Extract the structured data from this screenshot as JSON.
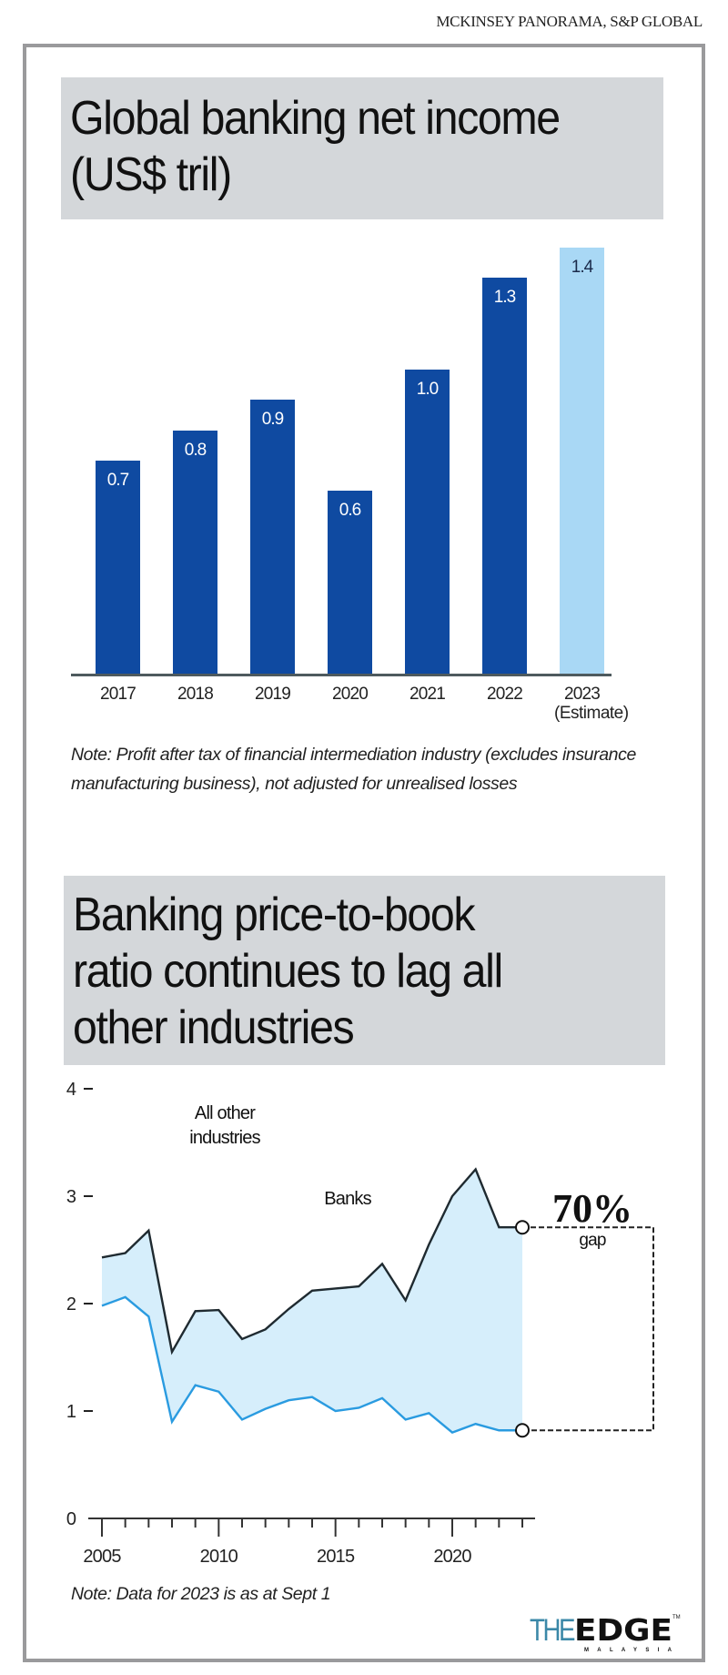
{
  "source": "MCKINSEY PANORAMA, S&P GLOBAL",
  "chart_data": [
    {
      "type": "bar",
      "title_lines": [
        "Global banking net income",
        "(US$ tril)"
      ],
      "categories": [
        "2017",
        "2018",
        "2019",
        "2020",
        "2021",
        "2022",
        "2023"
      ],
      "category_sublabels": {
        "2023": "(Estimate)"
      },
      "values": [
        0.7,
        0.8,
        0.9,
        0.6,
        1.0,
        1.3,
        1.4
      ],
      "value_labels": [
        "0.7",
        "0.8",
        "0.9",
        "0.6",
        "1.0",
        "1.3",
        "1.4"
      ],
      "colors": {
        "actual": "#0f4aa1",
        "estimate": "#a9d8f5"
      },
      "ylim": [
        0,
        1.4
      ],
      "grid": false,
      "note": "Note: Profit after tax of financial intermediation industry (excludes insurance manufacturing business), not adjusted for unrealised losses"
    },
    {
      "type": "line",
      "title_lines": [
        "Banking price-to-book",
        "ratio continues to lag all",
        "other industries"
      ],
      "x": [
        2005,
        2006,
        2007,
        2008,
        2009,
        2010,
        2011,
        2012,
        2013,
        2014,
        2015,
        2016,
        2017,
        2018,
        2019,
        2020,
        2021,
        2022,
        2023
      ],
      "series": [
        {
          "name": "All other industries",
          "name_lines": [
            "All other",
            "industries"
          ],
          "color": "#1f2a30",
          "values": [
            2.43,
            2.47,
            2.68,
            1.55,
            1.93,
            1.94,
            1.67,
            1.76,
            1.95,
            2.12,
            2.14,
            2.16,
            2.37,
            2.03,
            2.55,
            3.0,
            3.25,
            2.71,
            2.71
          ]
        },
        {
          "name": "Banks",
          "color": "#2a9be0",
          "values": [
            1.98,
            2.06,
            1.88,
            0.9,
            1.24,
            1.18,
            0.92,
            1.02,
            1.1,
            1.13,
            1.0,
            1.03,
            1.12,
            0.92,
            0.98,
            0.8,
            0.88,
            0.82,
            0.82
          ]
        }
      ],
      "fill_between_color": "#d6eefb",
      "yticks": [
        "0",
        "1",
        "2",
        "3",
        "4"
      ],
      "xtick_labels": [
        "2005",
        "2010",
        "2015",
        "2020"
      ],
      "ylim": [
        0,
        4
      ],
      "xlim": [
        2005,
        2023
      ],
      "grid": false,
      "annotation": {
        "value": "70%",
        "label": "gap"
      },
      "note": "Note: Data for 2023 is as at Sept 1"
    }
  ],
  "logo": {
    "text_the": "THE",
    "text_edge": "EDGE",
    "text_sub": "MALAYSIA",
    "tm": "TM",
    "color_the": "#3b88a8"
  }
}
